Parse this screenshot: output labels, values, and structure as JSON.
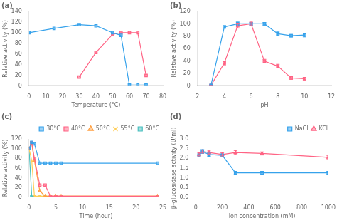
{
  "chart_data": [
    {
      "type": "line",
      "title": "(a)",
      "x_label": "Temperature (°C)",
      "y_label": "Relative activity (%)",
      "xlim": [
        0,
        80
      ],
      "ylim": [
        0,
        140
      ],
      "xticks": [
        0,
        10,
        20,
        30,
        40,
        50,
        60,
        70,
        80
      ],
      "yticks": [
        0,
        20,
        40,
        60,
        80,
        100,
        120,
        140
      ],
      "grid": false,
      "series": [
        {
          "x": [
            0,
            15,
            30,
            40,
            50,
            55,
            60,
            65,
            70
          ],
          "values": [
            100,
            108,
            115,
            113,
            100,
            95,
            2,
            2,
            2
          ],
          "marker": "square"
        },
        {
          "x": [
            30,
            40,
            50,
            55,
            60,
            65,
            70
          ],
          "values": [
            17,
            63,
            97,
            100,
            100,
            100,
            20
          ],
          "marker": "square"
        }
      ]
    },
    {
      "type": "line",
      "title": "(b)",
      "x_label": "pH",
      "y_label": "Relative activity (%)",
      "xlim": [
        2,
        12
      ],
      "ylim": [
        0,
        120
      ],
      "xticks": [
        2,
        4,
        6,
        8,
        10,
        12
      ],
      "yticks": [
        0,
        20,
        40,
        60,
        80,
        100,
        120
      ],
      "grid": false,
      "series": [
        {
          "x": [
            3,
            4,
            5,
            6,
            7,
            8,
            9,
            10
          ],
          "values": [
            1,
            95,
            100,
            100,
            100,
            84,
            81,
            82
          ],
          "errors": [
            0,
            2,
            3,
            2,
            2,
            3,
            2,
            3
          ],
          "marker": "square"
        },
        {
          "x": [
            3,
            4,
            5,
            6,
            7,
            8,
            9,
            10
          ],
          "values": [
            1,
            37,
            97,
            100,
            40,
            32,
            13,
            12
          ],
          "errors": [
            0,
            3,
            4,
            3,
            3,
            3,
            2,
            2
          ],
          "marker": "square"
        }
      ]
    },
    {
      "type": "line",
      "title": "(c)",
      "x_label": "Time (hour)",
      "y_label": "Relative activity (%)",
      "xlim": [
        0,
        25
      ],
      "ylim": [
        0,
        120
      ],
      "xticks": [
        0,
        5,
        10,
        15,
        20,
        25
      ],
      "yticks": [
        0,
        20,
        40,
        60,
        80,
        100,
        120
      ],
      "grid": false,
      "legend": "upper right",
      "series": [
        {
          "name": "30°C",
          "x": [
            0,
            0.5,
            1,
            2,
            3,
            4,
            5,
            6,
            24
          ],
          "values": [
            100,
            113,
            110,
            70,
            70,
            70,
            70,
            70,
            70
          ],
          "marker": "square"
        },
        {
          "name": "40°C",
          "x": [
            0,
            0.5,
            1,
            2,
            3,
            4,
            5,
            6,
            24
          ],
          "values": [
            100,
            112,
            80,
            25,
            25,
            2,
            2,
            2,
            2
          ],
          "marker": "square"
        },
        {
          "name": "50°C",
          "x": [
            0,
            0.5,
            1,
            2,
            3,
            4,
            5,
            6,
            24
          ],
          "values": [
            100,
            110,
            75,
            13,
            2,
            2,
            2,
            2,
            2
          ],
          "marker": "triangle"
        },
        {
          "name": "55°C",
          "x": [
            0,
            0.5,
            1,
            2,
            3,
            24
          ],
          "values": [
            100,
            75,
            2,
            2,
            2,
            2
          ],
          "marker": "x"
        },
        {
          "name": "60°C",
          "x": [
            0,
            0.5,
            1,
            2,
            3,
            24
          ],
          "values": [
            100,
            2,
            0,
            0,
            0,
            0
          ],
          "marker": "square"
        }
      ]
    },
    {
      "type": "line",
      "title": "(d)",
      "x_label": "Ion concentration (mM)",
      "y_label": "β-glucosidase activity (U/ml)",
      "xlim": [
        0,
        1000
      ],
      "ylim": [
        0,
        3
      ],
      "xticks": [
        0,
        200,
        400,
        600,
        800,
        1000
      ],
      "yticks": [
        {
          "value": 0,
          "label": "0.0"
        },
        0.5,
        {
          "value": 1,
          "label": "1.0"
        },
        1.5,
        {
          "value": 2,
          "label": "2.0"
        },
        2.5,
        {
          "value": 3,
          "label": "3.0"
        }
      ],
      "grid": false,
      "legend": "upper right",
      "series": [
        {
          "name": "NaCl",
          "x": [
            25,
            50,
            100,
            200,
            300,
            500,
            1000
          ],
          "values": [
            2.15,
            2.35,
            2.2,
            2.15,
            1.25,
            1.25,
            1.25
          ],
          "errors": [
            0.08,
            0.1,
            0.1,
            0.08,
            0.08,
            0.08,
            0.08
          ],
          "marker": "square"
        },
        {
          "name": "KCl",
          "x": [
            25,
            50,
            100,
            200,
            300,
            500,
            1000
          ],
          "values": [
            2.2,
            2.35,
            2.3,
            2.2,
            2.3,
            2.25,
            2.05
          ],
          "errors": [
            0.08,
            0.08,
            0.08,
            0.08,
            0.1,
            0.08,
            0.08
          ],
          "marker": "triangle"
        }
      ]
    }
  ]
}
